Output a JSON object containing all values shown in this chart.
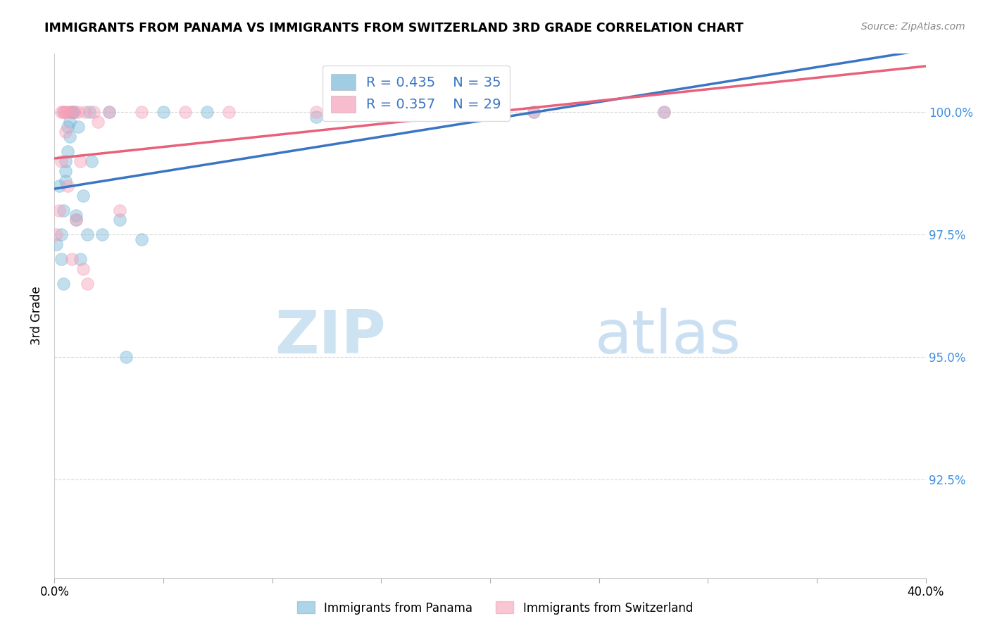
{
  "title": "IMMIGRANTS FROM PANAMA VS IMMIGRANTS FROM SWITZERLAND 3RD GRADE CORRELATION CHART",
  "source": "Source: ZipAtlas.com",
  "ylabel": "3rd Grade",
  "y_tick_labels": [
    "100.0%",
    "97.5%",
    "95.0%",
    "92.5%"
  ],
  "y_tick_values": [
    1.0,
    0.975,
    0.95,
    0.925
  ],
  "x_lim": [
    0.0,
    0.4
  ],
  "y_lim": [
    0.905,
    1.012
  ],
  "legend_blue_R": "R = 0.435",
  "legend_blue_N": "N = 35",
  "legend_pink_R": "R = 0.357",
  "legend_pink_N": "N = 29",
  "blue_color": "#7ab8d9",
  "pink_color": "#f4a0b8",
  "blue_line_color": "#3a75c4",
  "pink_line_color": "#e8607a",
  "legend_text_color": "#3a75c4",
  "right_axis_color": "#4090e0",
  "panama_x": [
    0.001,
    0.002,
    0.003,
    0.003,
    0.004,
    0.004,
    0.005,
    0.005,
    0.005,
    0.006,
    0.006,
    0.007,
    0.007,
    0.008,
    0.008,
    0.009,
    0.01,
    0.01,
    0.011,
    0.012,
    0.013,
    0.015,
    0.016,
    0.017,
    0.022,
    0.025,
    0.03,
    0.033,
    0.04,
    0.05,
    0.07,
    0.12,
    0.18,
    0.22,
    0.28
  ],
  "panama_y": [
    0.973,
    0.985,
    0.97,
    0.975,
    0.98,
    0.965,
    0.99,
    0.988,
    0.986,
    0.997,
    0.992,
    0.995,
    0.998,
    1.0,
    1.0,
    1.0,
    0.979,
    0.978,
    0.997,
    0.97,
    0.983,
    0.975,
    1.0,
    0.99,
    0.975,
    1.0,
    0.978,
    0.95,
    0.974,
    1.0,
    1.0,
    0.999,
    1.0,
    1.0,
    1.0
  ],
  "swiss_x": [
    0.001,
    0.002,
    0.003,
    0.003,
    0.004,
    0.004,
    0.005,
    0.005,
    0.006,
    0.006,
    0.007,
    0.008,
    0.009,
    0.01,
    0.011,
    0.012,
    0.013,
    0.014,
    0.015,
    0.018,
    0.02,
    0.025,
    0.03,
    0.04,
    0.06,
    0.08,
    0.12,
    0.22,
    0.28
  ],
  "swiss_y": [
    0.975,
    0.98,
    0.99,
    1.0,
    1.0,
    1.0,
    0.996,
    1.0,
    1.0,
    0.985,
    1.0,
    0.97,
    1.0,
    0.978,
    1.0,
    0.99,
    0.968,
    1.0,
    0.965,
    1.0,
    0.998,
    1.0,
    0.98,
    1.0,
    1.0,
    1.0,
    1.0,
    1.0,
    1.0
  ],
  "watermark_zip": "ZIP",
  "watermark_atlas": "atlas",
  "background_color": "#ffffff",
  "grid_color": "#d8d8d8",
  "x_tick_positions": [
    0.0,
    0.05,
    0.1,
    0.15,
    0.2,
    0.25,
    0.3,
    0.35,
    0.4
  ],
  "bottom_legend_labels": [
    "Immigrants from Panama",
    "Immigrants from Switzerland"
  ]
}
